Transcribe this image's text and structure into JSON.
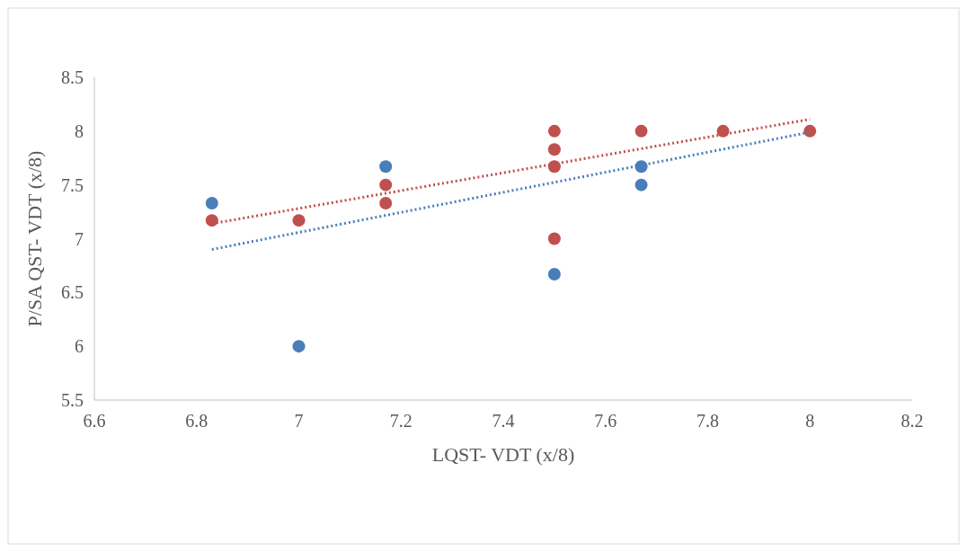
{
  "chart_data": {
    "type": "scatter",
    "xlabel": "LQST- VDT (x/8)",
    "ylabel": "P/SA QST- VDT (x/8)",
    "xlim": [
      6.6,
      8.2
    ],
    "xticks": [
      6.6,
      6.8,
      7,
      7.2,
      7.4,
      7.6,
      7.8,
      8,
      8.2
    ],
    "ylim": [
      5.5,
      8.5
    ],
    "yticks": [
      5.5,
      6,
      6.5,
      7,
      7.5,
      8,
      8.5
    ],
    "grid": false,
    "marker": "circle",
    "series": [
      {
        "type": "scatter",
        "color": "#4a7ebb",
        "x": [
          6.83,
          7,
          7.17,
          7.5,
          7.67,
          7.67
        ],
        "values": [
          7.33,
          6,
          7.67,
          6.67,
          7.67,
          7.5
        ]
      },
      {
        "type": "scatter",
        "color": "#c0504d",
        "x": [
          6.83,
          7,
          7.17,
          7.17,
          7.5,
          7.5,
          7.5,
          7.5,
          7.67,
          7.83,
          8
        ],
        "values": [
          7.17,
          7.17,
          7.5,
          7.33,
          8,
          7.83,
          7.67,
          7,
          8,
          8,
          8
        ]
      },
      {
        "type": "line",
        "color": "#4a7ebb",
        "line_style": "dotted",
        "marker": "none",
        "x": [
          6.83,
          8
        ],
        "values": [
          6.9,
          7.99
        ]
      },
      {
        "type": "line",
        "color": "#c0504d",
        "line_style": "dotted",
        "marker": "none",
        "x": [
          6.83,
          8
        ],
        "values": [
          7.14,
          8.11
        ]
      }
    ]
  }
}
